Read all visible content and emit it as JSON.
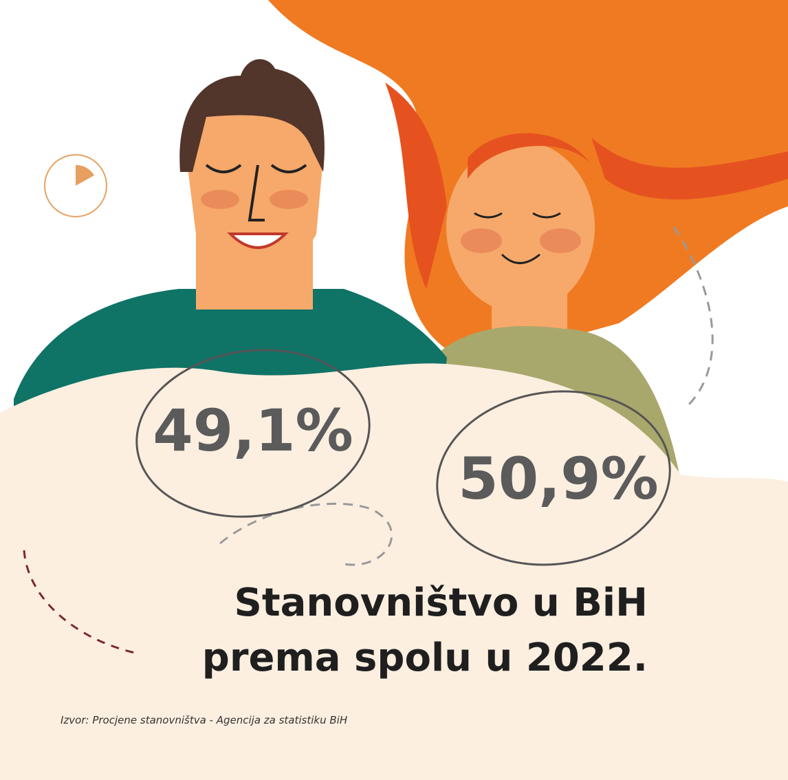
{
  "stats": [
    {
      "label": "49,1%"
    },
    {
      "label": "50,9%"
    }
  ],
  "title": [
    "Stanovništvo u BiH",
    "prema spolu u 2022."
  ],
  "source": "Izvor:  Procjene stanovništva - Agencija za statistiku BiH"
}
